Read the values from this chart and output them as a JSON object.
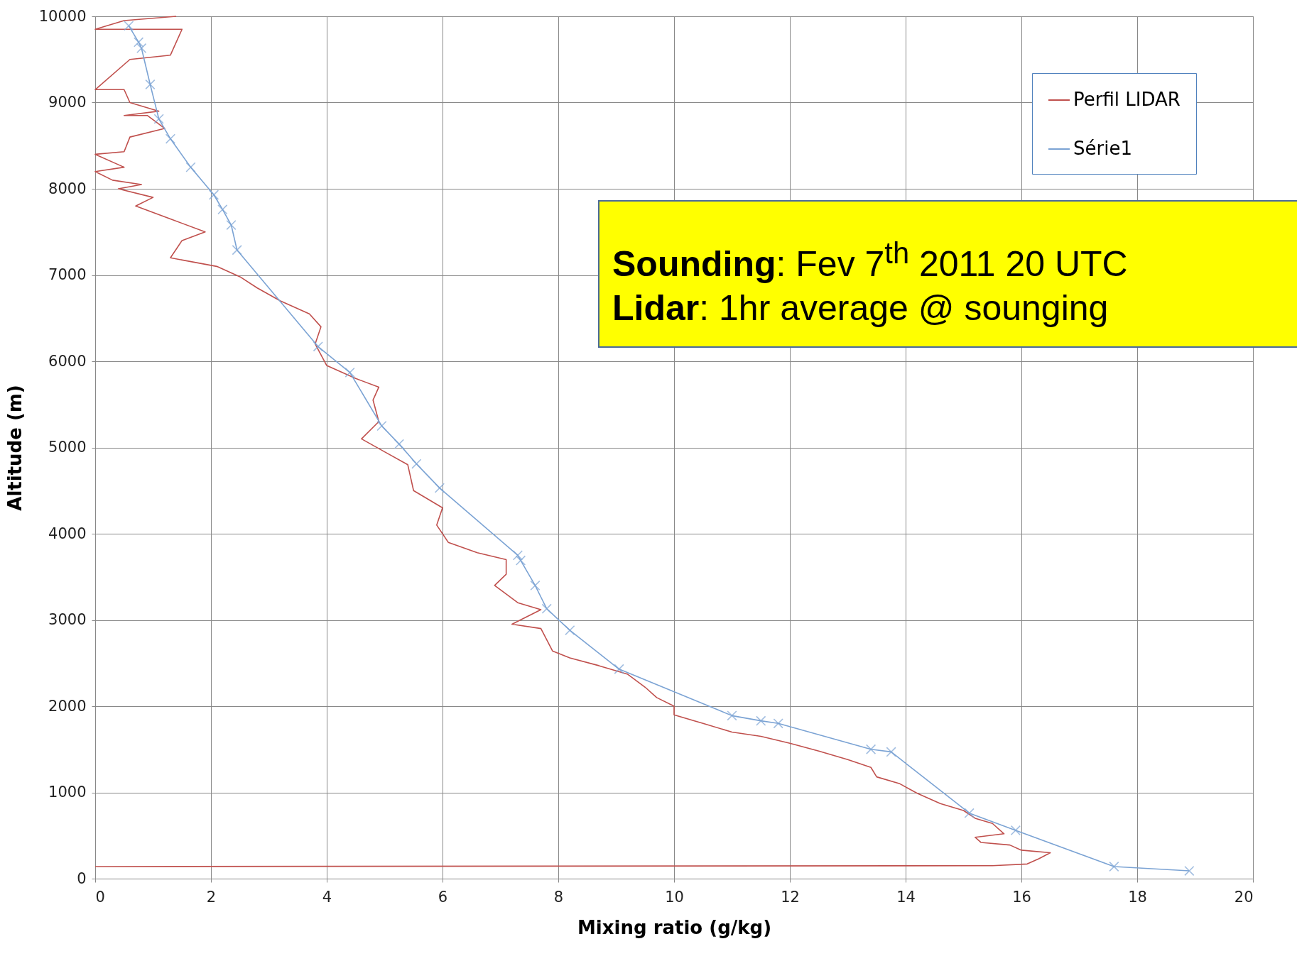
{
  "chart_data": {
    "type": "line",
    "xlabel": "Mixing ratio (g/kg)",
    "ylabel": "Altitude (m)",
    "xlim": [
      0,
      20
    ],
    "xticks": [
      0,
      2,
      4,
      6,
      8,
      10,
      12,
      14,
      16,
      18,
      20
    ],
    "ylim": [
      0,
      10000
    ],
    "yticks": [
      0,
      1000,
      2000,
      3000,
      4000,
      5000,
      6000,
      7000,
      8000,
      9000,
      10000
    ],
    "grid": true,
    "legend": "top right",
    "annotations": [
      "Sounding: Fev 7$^{th}$ 2011 20 UTC\nLidar: 1hr average @ sounging"
    ],
    "series": [
      {
        "name": "Perfil LIDAR",
        "color": "#c0504d",
        "marker": "none",
        "x": [
          0,
          15.5,
          16.1,
          16.3,
          16.5,
          16.0,
          15.8,
          15.3,
          15.2,
          15.7,
          15.5,
          15.2,
          15.0,
          14.6,
          14.2,
          13.9,
          13.5,
          13.4,
          13.0,
          12.5,
          12.0,
          11.5,
          11.0,
          10.5,
          10.0,
          10.0,
          9.7,
          9.5,
          9.2,
          8.7,
          8.2,
          7.9,
          7.7,
          7.2,
          7.7,
          7.3,
          6.9,
          7.1,
          7.1,
          6.6,
          6.1,
          5.9,
          6.0,
          5.5,
          5.4,
          5.0,
          4.6,
          4.9,
          4.8,
          4.9,
          4.5,
          4.0,
          3.8,
          3.9,
          3.7,
          3.2,
          2.8,
          2.5,
          2.1,
          1.3,
          1.5,
          1.9,
          1.3,
          0.7,
          1.0,
          0.4,
          0.8,
          0.3,
          0,
          0.5,
          0,
          0.5,
          0.6,
          1.2,
          0.9,
          0.5,
          1.1,
          0.6,
          0.5,
          0,
          0.6,
          1.3,
          1.5,
          0,
          0.5,
          1.4
        ],
        "values": [
          140,
          150,
          170,
          230,
          300,
          330,
          390,
          420,
          480,
          520,
          640,
          700,
          790,
          870,
          990,
          1100,
          1180,
          1290,
          1380,
          1480,
          1570,
          1650,
          1700,
          1800,
          1900,
          2000,
          2100,
          2220,
          2370,
          2470,
          2560,
          2640,
          2900,
          2950,
          3120,
          3200,
          3400,
          3530,
          3700,
          3780,
          3900,
          4100,
          4300,
          4500,
          4800,
          4950,
          5100,
          5300,
          5550,
          5700,
          5800,
          5950,
          6200,
          6400,
          6550,
          6700,
          6850,
          6980,
          7100,
          7200,
          7400,
          7500,
          7650,
          7800,
          7900,
          8000,
          8050,
          8100,
          8200,
          8250,
          8400,
          8430,
          8600,
          8700,
          8850,
          8850,
          8900,
          9000,
          9150,
          9150,
          9500,
          9550,
          9850,
          9850,
          9950,
          10000
        ]
      },
      {
        "name": "Série1",
        "color": "#7ba3d4",
        "marker": "cross",
        "x": [
          18.9,
          17.6,
          15.9,
          15.1,
          13.75,
          13.4,
          11.8,
          11.5,
          11.0,
          9.05,
          8.2,
          7.8,
          7.6,
          7.35,
          7.3,
          5.95,
          5.55,
          5.25,
          4.95,
          4.4,
          3.85,
          2.45,
          2.35,
          2.2,
          2.05,
          1.65,
          1.3,
          1.1,
          0.95,
          0.8,
          0.75,
          0.58
        ],
        "values": [
          90,
          140,
          560,
          760,
          1470,
          1500,
          1800,
          1830,
          1890,
          2430,
          2880,
          3130,
          3400,
          3690,
          3750,
          4530,
          4810,
          5040,
          5250,
          5870,
          6170,
          7290,
          7580,
          7760,
          7930,
          8250,
          8580,
          8810,
          9210,
          9630,
          9700,
          9890
        ]
      }
    ]
  }
}
